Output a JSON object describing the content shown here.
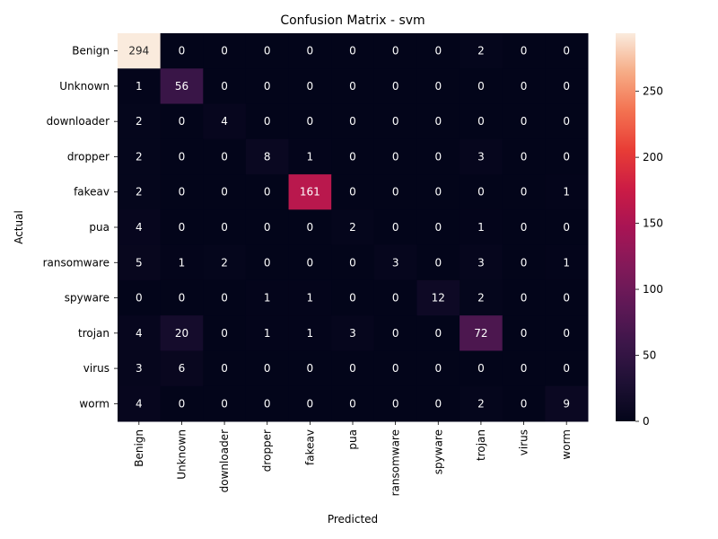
{
  "chart_data": {
    "type": "heatmap",
    "title": "Confusion Matrix - svm",
    "xlabel": "Predicted",
    "ylabel": "Actual",
    "x_categories": [
      "Benign",
      "Unknown",
      "downloader",
      "dropper",
      "fakeav",
      "pua",
      "ransomware",
      "spyware",
      "trojan",
      "virus",
      "worm"
    ],
    "y_categories": [
      "Benign",
      "Unknown",
      "downloader",
      "dropper",
      "fakeav",
      "pua",
      "ransomware",
      "spyware",
      "trojan",
      "virus",
      "worm"
    ],
    "values": [
      [
        294,
        0,
        0,
        0,
        0,
        0,
        0,
        0,
        2,
        0,
        0
      ],
      [
        1,
        56,
        0,
        0,
        0,
        0,
        0,
        0,
        0,
        0,
        0
      ],
      [
        2,
        0,
        4,
        0,
        0,
        0,
        0,
        0,
        0,
        0,
        0
      ],
      [
        2,
        0,
        0,
        8,
        1,
        0,
        0,
        0,
        3,
        0,
        0
      ],
      [
        2,
        0,
        0,
        0,
        161,
        0,
        0,
        0,
        0,
        0,
        1
      ],
      [
        4,
        0,
        0,
        0,
        0,
        2,
        0,
        0,
        1,
        0,
        0
      ],
      [
        5,
        1,
        2,
        0,
        0,
        0,
        3,
        0,
        3,
        0,
        1
      ],
      [
        0,
        0,
        0,
        1,
        1,
        0,
        0,
        12,
        2,
        0,
        0
      ],
      [
        4,
        20,
        0,
        1,
        1,
        3,
        0,
        0,
        72,
        0,
        0
      ],
      [
        3,
        6,
        0,
        0,
        0,
        0,
        0,
        0,
        0,
        0,
        0
      ],
      [
        4,
        0,
        0,
        0,
        0,
        0,
        0,
        0,
        2,
        0,
        9
      ]
    ],
    "colorbar": {
      "range": [
        0,
        294
      ],
      "ticks": [
        0,
        50,
        100,
        150,
        200,
        250
      ]
    },
    "colormap": "rocket",
    "annotations": true
  }
}
